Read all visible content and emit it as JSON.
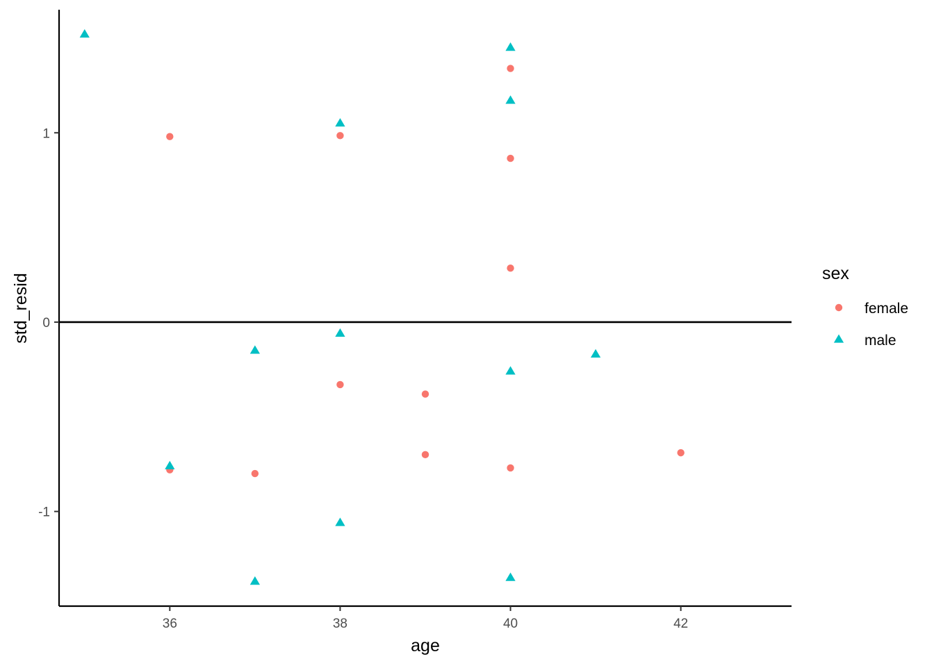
{
  "chart_data": {
    "type": "scatter",
    "xlabel": "age",
    "ylabel": "std_resid",
    "xlim": [
      34.7,
      43.3
    ],
    "ylim": [
      -1.5,
      1.65
    ],
    "x_ticks": [
      36,
      38,
      40,
      42
    ],
    "x_tick_labels": [
      "36",
      "38",
      "40",
      "42"
    ],
    "y_ticks": [
      -1,
      0,
      1
    ],
    "y_tick_labels": [
      "-1",
      "0",
      "1"
    ],
    "hline": 0,
    "grid": false,
    "legend": {
      "title": "sex",
      "position": "right"
    },
    "series": [
      {
        "name": "female",
        "color": "#F8766D",
        "shape": "circle",
        "points": [
          {
            "x": 36,
            "y": 0.98
          },
          {
            "x": 36,
            "y": -0.78
          },
          {
            "x": 37,
            "y": -0.8
          },
          {
            "x": 38,
            "y": 0.985
          },
          {
            "x": 38,
            "y": -0.33
          },
          {
            "x": 39,
            "y": -0.38
          },
          {
            "x": 39,
            "y": -0.7
          },
          {
            "x": 40,
            "y": 1.34
          },
          {
            "x": 40,
            "y": 0.865
          },
          {
            "x": 40,
            "y": 0.285
          },
          {
            "x": 40,
            "y": -0.77
          },
          {
            "x": 42,
            "y": -0.69
          }
        ]
      },
      {
        "name": "male",
        "color": "#00BFC4",
        "shape": "triangle",
        "points": [
          {
            "x": 35,
            "y": 1.52
          },
          {
            "x": 36,
            "y": -0.76
          },
          {
            "x": 37,
            "y": -0.15
          },
          {
            "x": 37,
            "y": -1.37
          },
          {
            "x": 38,
            "y": 1.05
          },
          {
            "x": 38,
            "y": -0.06
          },
          {
            "x": 38,
            "y": -1.06
          },
          {
            "x": 40,
            "y": 1.45
          },
          {
            "x": 40,
            "y": 1.17
          },
          {
            "x": 40,
            "y": -0.26
          },
          {
            "x": 40,
            "y": -1.35
          },
          {
            "x": 41,
            "y": -0.17
          }
        ]
      }
    ]
  }
}
